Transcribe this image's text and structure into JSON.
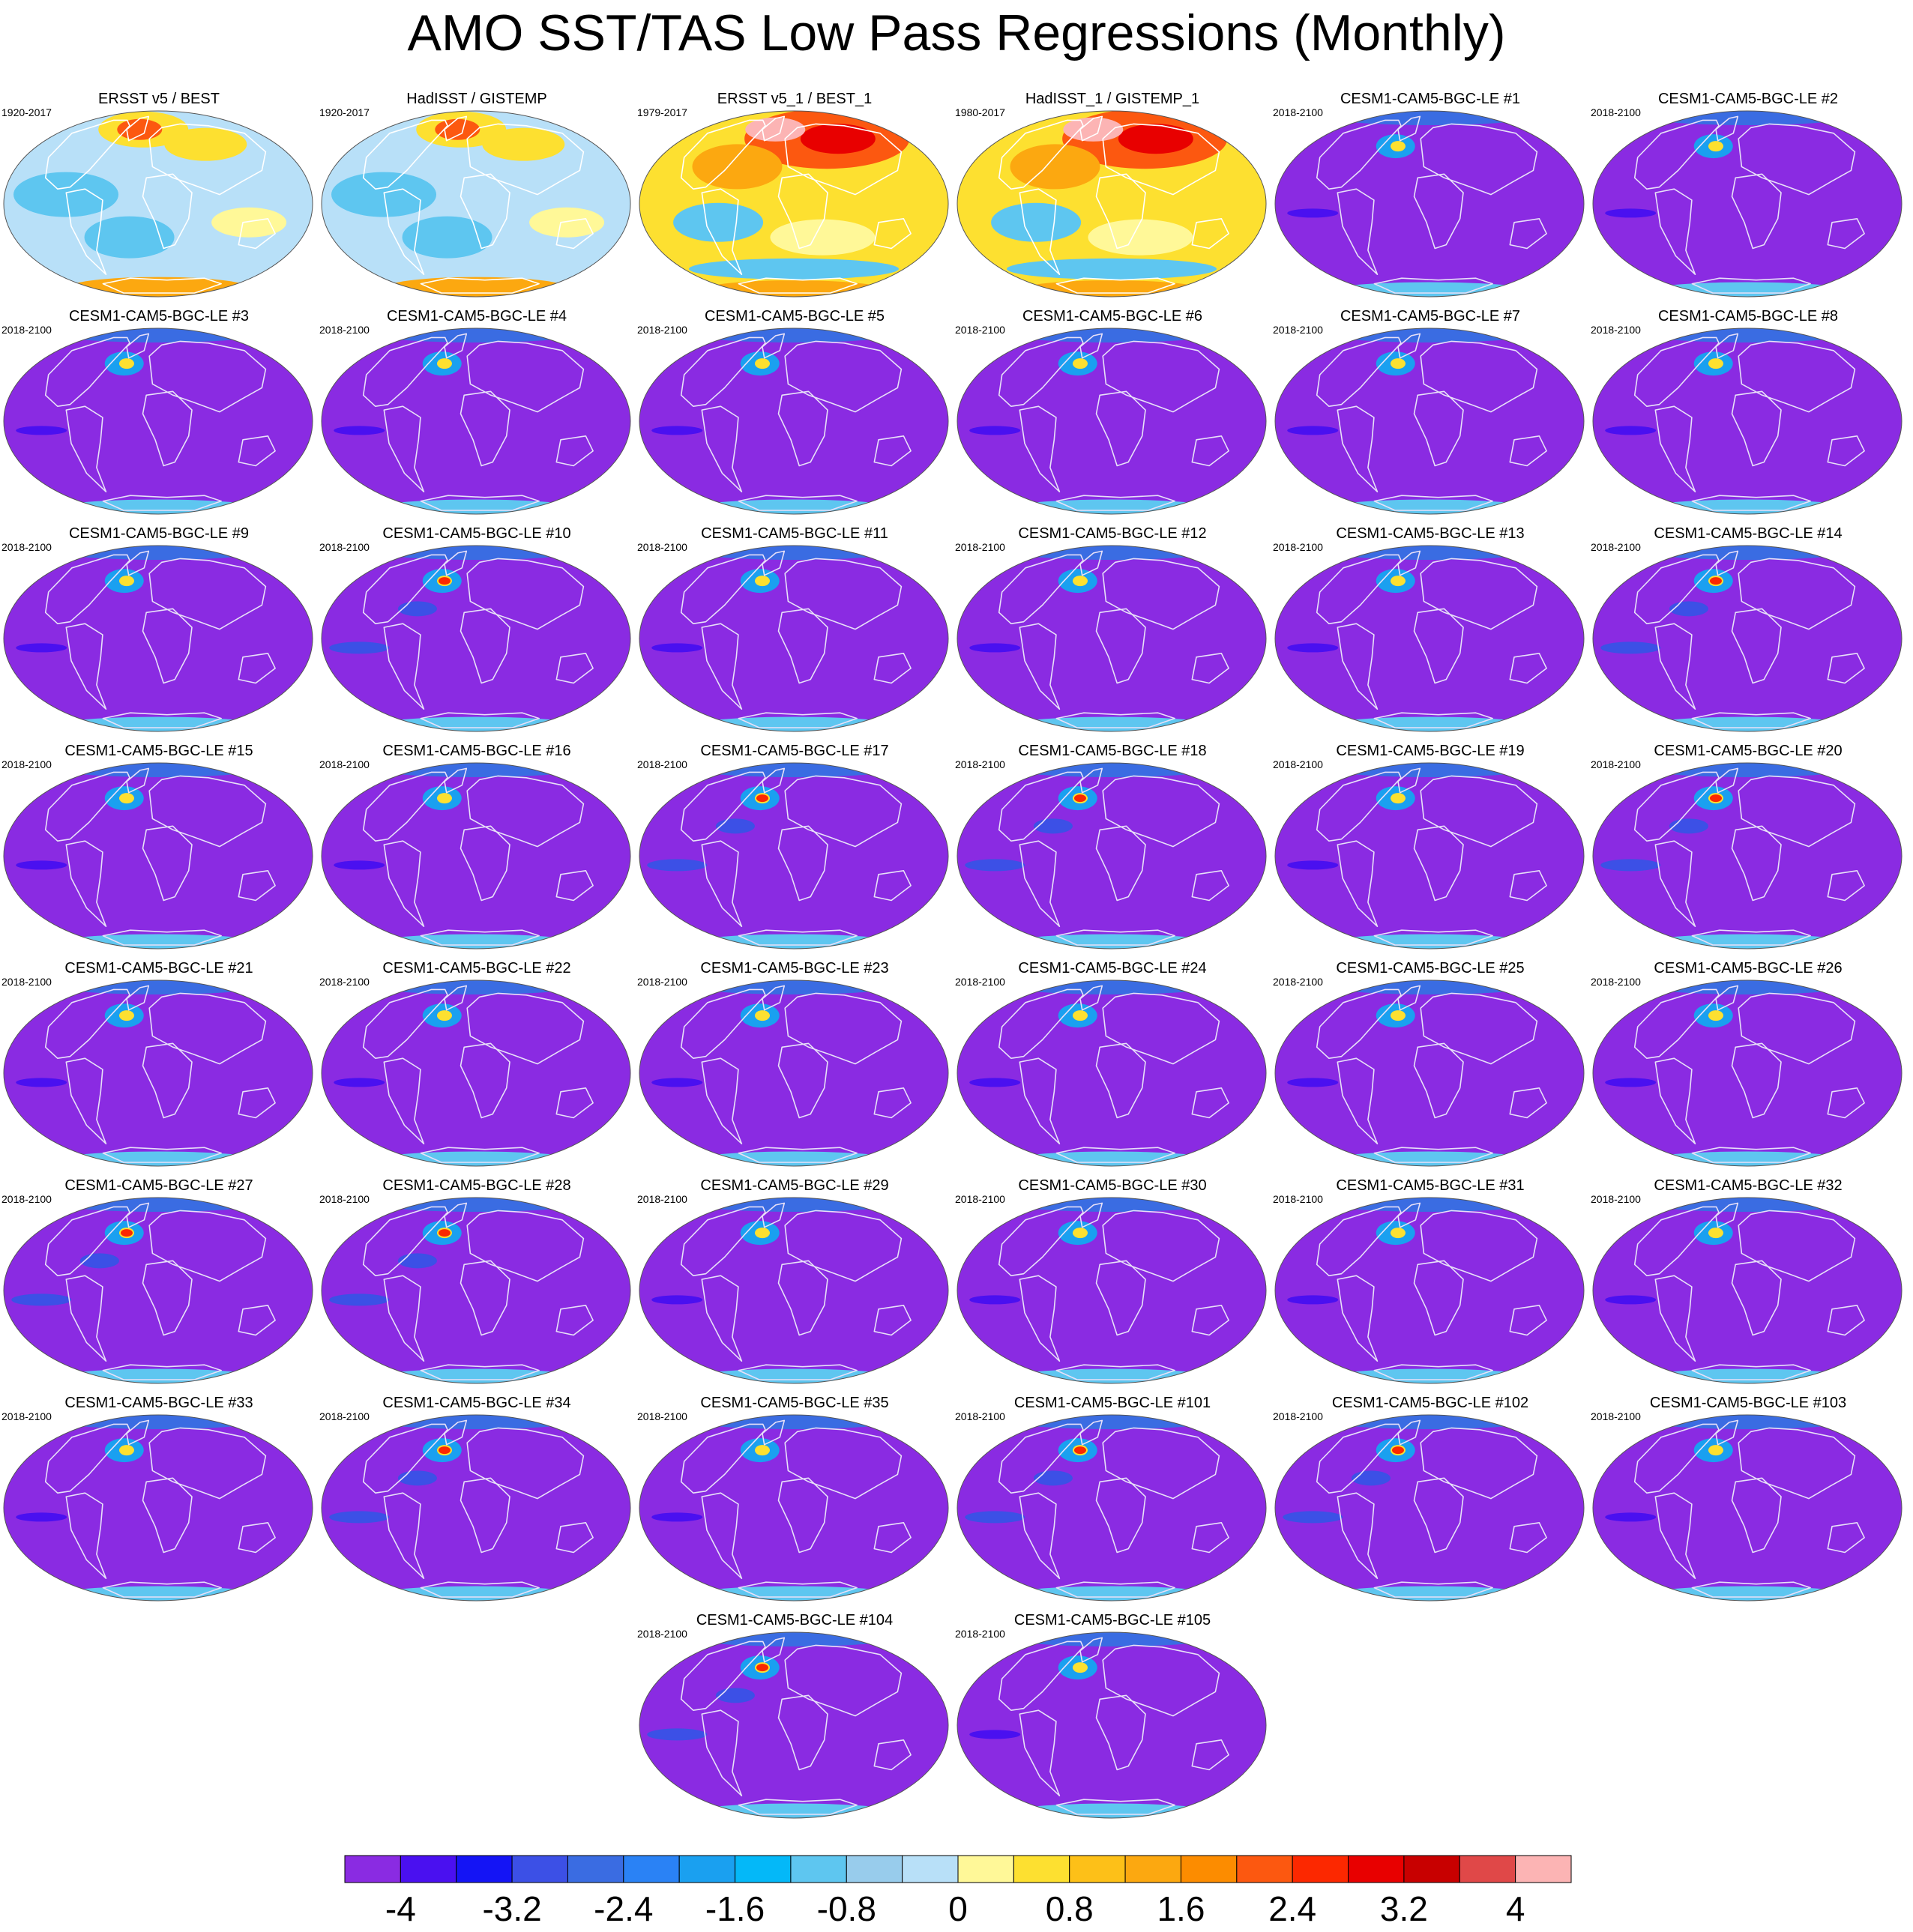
{
  "title": "AMO SST/TAS Low Pass Regressions (Monthly)",
  "panels": [
    {
      "title": "ERSST v5 / BEST",
      "years": "1920-2017",
      "style": "obs-mixed"
    },
    {
      "title": "HadISST / GISTEMP",
      "years": "1920-2017",
      "style": "obs-mixed"
    },
    {
      "title": "ERSST v5_1 / BEST_1",
      "years": "1979-2017",
      "style": "obs-warm"
    },
    {
      "title": "HadISST_1 / GISTEMP_1",
      "years": "1980-2017",
      "style": "obs-warm"
    },
    {
      "title": "CESM1-CAM5-BGC-LE #1",
      "years": "2018-2100",
      "style": "model"
    },
    {
      "title": "CESM1-CAM5-BGC-LE #2",
      "years": "2018-2100",
      "style": "model"
    },
    {
      "title": "CESM1-CAM5-BGC-LE #3",
      "years": "2018-2100",
      "style": "model"
    },
    {
      "title": "CESM1-CAM5-BGC-LE #4",
      "years": "2018-2100",
      "style": "model"
    },
    {
      "title": "CESM1-CAM5-BGC-LE #5",
      "years": "2018-2100",
      "style": "model"
    },
    {
      "title": "CESM1-CAM5-BGC-LE #6",
      "years": "2018-2100",
      "style": "model"
    },
    {
      "title": "CESM1-CAM5-BGC-LE #7",
      "years": "2018-2100",
      "style": "model"
    },
    {
      "title": "CESM1-CAM5-BGC-LE #8",
      "years": "2018-2100",
      "style": "model"
    },
    {
      "title": "CESM1-CAM5-BGC-LE #9",
      "years": "2018-2100",
      "style": "model"
    },
    {
      "title": "CESM1-CAM5-BGC-LE #10",
      "years": "2018-2100",
      "style": "model-hot"
    },
    {
      "title": "CESM1-CAM5-BGC-LE #11",
      "years": "2018-2100",
      "style": "model"
    },
    {
      "title": "CESM1-CAM5-BGC-LE #12",
      "years": "2018-2100",
      "style": "model"
    },
    {
      "title": "CESM1-CAM5-BGC-LE #13",
      "years": "2018-2100",
      "style": "model"
    },
    {
      "title": "CESM1-CAM5-BGC-LE #14",
      "years": "2018-2100",
      "style": "model-hot"
    },
    {
      "title": "CESM1-CAM5-BGC-LE #15",
      "years": "2018-2100",
      "style": "model"
    },
    {
      "title": "CESM1-CAM5-BGC-LE #16",
      "years": "2018-2100",
      "style": "model"
    },
    {
      "title": "CESM1-CAM5-BGC-LE #17",
      "years": "2018-2100",
      "style": "model-hot"
    },
    {
      "title": "CESM1-CAM5-BGC-LE #18",
      "years": "2018-2100",
      "style": "model-hot"
    },
    {
      "title": "CESM1-CAM5-BGC-LE #19",
      "years": "2018-2100",
      "style": "model"
    },
    {
      "title": "CESM1-CAM5-BGC-LE #20",
      "years": "2018-2100",
      "style": "model-hot"
    },
    {
      "title": "CESM1-CAM5-BGC-LE #21",
      "years": "2018-2100",
      "style": "model"
    },
    {
      "title": "CESM1-CAM5-BGC-LE #22",
      "years": "2018-2100",
      "style": "model"
    },
    {
      "title": "CESM1-CAM5-BGC-LE #23",
      "years": "2018-2100",
      "style": "model"
    },
    {
      "title": "CESM1-CAM5-BGC-LE #24",
      "years": "2018-2100",
      "style": "model"
    },
    {
      "title": "CESM1-CAM5-BGC-LE #25",
      "years": "2018-2100",
      "style": "model"
    },
    {
      "title": "CESM1-CAM5-BGC-LE #26",
      "years": "2018-2100",
      "style": "model"
    },
    {
      "title": "CESM1-CAM5-BGC-LE #27",
      "years": "2018-2100",
      "style": "model-hot"
    },
    {
      "title": "CESM1-CAM5-BGC-LE #28",
      "years": "2018-2100",
      "style": "model-hot"
    },
    {
      "title": "CESM1-CAM5-BGC-LE #29",
      "years": "2018-2100",
      "style": "model"
    },
    {
      "title": "CESM1-CAM5-BGC-LE #30",
      "years": "2018-2100",
      "style": "model"
    },
    {
      "title": "CESM1-CAM5-BGC-LE #31",
      "years": "2018-2100",
      "style": "model"
    },
    {
      "title": "CESM1-CAM5-BGC-LE #32",
      "years": "2018-2100",
      "style": "model"
    },
    {
      "title": "CESM1-CAM5-BGC-LE #33",
      "years": "2018-2100",
      "style": "model"
    },
    {
      "title": "CESM1-CAM5-BGC-LE #34",
      "years": "2018-2100",
      "style": "model-hot"
    },
    {
      "title": "CESM1-CAM5-BGC-LE #35",
      "years": "2018-2100",
      "style": "model"
    },
    {
      "title": "CESM1-CAM5-BGC-LE #101",
      "years": "2018-2100",
      "style": "model-hot"
    },
    {
      "title": "CESM1-CAM5-BGC-LE #102",
      "years": "2018-2100",
      "style": "model-hot"
    },
    {
      "title": "CESM1-CAM5-BGC-LE #103",
      "years": "2018-2100",
      "style": "model"
    },
    {
      "title": "CESM1-CAM5-BGC-LE #104",
      "years": "2018-2100",
      "style": "model-hot"
    },
    {
      "title": "CESM1-CAM5-BGC-LE #105",
      "years": "2018-2100",
      "style": "model"
    }
  ],
  "colorbar": {
    "levels": [
      -4,
      -3.6,
      -3.2,
      -2.8,
      -2.4,
      -2.0,
      -1.6,
      -1.2,
      -0.8,
      -0.4,
      0,
      0.4,
      0.8,
      1.2,
      1.6,
      2.0,
      2.4,
      2.8,
      3.2,
      3.6,
      4
    ],
    "colors": [
      "#8a2be2",
      "#4a10f0",
      "#1414f5",
      "#3c50e6",
      "#3a6ce2",
      "#2a82f5",
      "#1aa0f0",
      "#04b8f8",
      "#5ec6f0",
      "#98ccec",
      "#b8e0f8",
      "#fff898",
      "#fde030",
      "#fdc018",
      "#fca810",
      "#fc8c00",
      "#fc5810",
      "#fc2800",
      "#e80000",
      "#c80000",
      "#e04848",
      "#fcb4b4"
    ],
    "labels": [
      "-4",
      "-3.2",
      "-2.4",
      "-1.6",
      "-0.8",
      "0",
      "0.8",
      "1.6",
      "2.4",
      "3.2",
      "4"
    ]
  }
}
